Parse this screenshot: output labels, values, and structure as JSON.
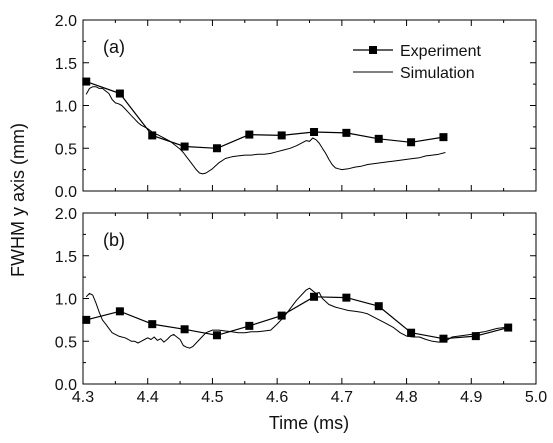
{
  "chart_data": [
    {
      "type": "line",
      "panel_label": "(a)",
      "xlim": [
        4.3,
        5.0
      ],
      "ylim": [
        0.0,
        2.0
      ],
      "y_ticks": [
        "0.0",
        "0.5",
        "1.0",
        "1.5",
        "2.0"
      ],
      "legend": {
        "position": "top-right",
        "entries": [
          "Experiment",
          "Simulation"
        ]
      },
      "series": [
        {
          "name": "Experiment",
          "style": "line-square-marker",
          "color": "#000000",
          "x": [
            4.305,
            4.357,
            4.407,
            4.457,
            4.507,
            4.557,
            4.607,
            4.657,
            4.707,
            4.757,
            4.807,
            4.857
          ],
          "y": [
            1.28,
            1.14,
            0.65,
            0.52,
            0.5,
            0.66,
            0.65,
            0.69,
            0.68,
            0.61,
            0.57,
            0.63
          ]
        },
        {
          "name": "Simulation",
          "style": "line",
          "color": "#000000",
          "x": [
            4.305,
            4.31,
            4.315,
            4.32,
            4.325,
            4.33,
            4.335,
            4.34,
            4.345,
            4.35,
            4.355,
            4.36,
            4.365,
            4.37,
            4.375,
            4.38,
            4.385,
            4.39,
            4.395,
            4.4,
            4.405,
            4.41,
            4.415,
            4.42,
            4.425,
            4.43,
            4.435,
            4.44,
            4.445,
            4.45,
            4.455,
            4.46,
            4.465,
            4.47,
            4.475,
            4.48,
            4.485,
            4.49,
            4.5,
            4.51,
            4.52,
            4.53,
            4.54,
            4.55,
            4.56,
            4.57,
            4.58,
            4.59,
            4.6,
            4.61,
            4.62,
            4.63,
            4.64,
            4.645,
            4.65,
            4.655,
            4.66,
            4.665,
            4.67,
            4.675,
            4.68,
            4.685,
            4.69,
            4.695,
            4.7,
            4.71,
            4.72,
            4.73,
            4.74,
            4.75,
            4.76,
            4.77,
            4.78,
            4.79,
            4.8,
            4.81,
            4.82,
            4.83,
            4.84,
            4.85,
            4.86
          ],
          "y": [
            1.13,
            1.2,
            1.22,
            1.22,
            1.2,
            1.2,
            1.17,
            1.14,
            1.07,
            1.03,
            1.02,
            1.0,
            0.96,
            0.92,
            0.88,
            0.84,
            0.8,
            0.77,
            0.75,
            0.73,
            0.7,
            0.67,
            0.66,
            0.64,
            0.62,
            0.6,
            0.58,
            0.55,
            0.52,
            0.49,
            0.45,
            0.4,
            0.35,
            0.3,
            0.25,
            0.21,
            0.2,
            0.21,
            0.26,
            0.33,
            0.38,
            0.4,
            0.41,
            0.42,
            0.42,
            0.43,
            0.43,
            0.44,
            0.46,
            0.48,
            0.5,
            0.53,
            0.57,
            0.59,
            0.58,
            0.62,
            0.6,
            0.56,
            0.5,
            0.44,
            0.37,
            0.31,
            0.27,
            0.26,
            0.25,
            0.26,
            0.28,
            0.29,
            0.31,
            0.32,
            0.33,
            0.34,
            0.35,
            0.36,
            0.37,
            0.38,
            0.39,
            0.41,
            0.42,
            0.43,
            0.45
          ]
        }
      ]
    },
    {
      "type": "line",
      "panel_label": "(b)",
      "xlim": [
        4.3,
        5.0
      ],
      "ylim": [
        0.0,
        2.0
      ],
      "y_ticks": [
        "0.0",
        "0.5",
        "1.0",
        "1.5",
        "2.0"
      ],
      "x_ticks": [
        "4.3",
        "4.4",
        "4.5",
        "4.6",
        "4.7",
        "4.8",
        "4.9",
        "5.0"
      ],
      "xlabel": "Time (ms)",
      "series": [
        {
          "name": "Experiment",
          "style": "line-square-marker",
          "color": "#000000",
          "x": [
            4.305,
            4.357,
            4.407,
            4.457,
            4.507,
            4.557,
            4.607,
            4.657,
            4.707,
            4.757,
            4.807,
            4.857,
            4.907,
            4.957
          ],
          "y": [
            0.75,
            0.85,
            0.7,
            0.64,
            0.57,
            0.68,
            0.8,
            1.02,
            1.01,
            0.91,
            0.6,
            0.53,
            0.56,
            0.66
          ]
        },
        {
          "name": "Simulation",
          "style": "line",
          "color": "#000000",
          "x": [
            4.305,
            4.31,
            4.315,
            4.32,
            4.325,
            4.33,
            4.335,
            4.34,
            4.345,
            4.35,
            4.355,
            4.36,
            4.365,
            4.37,
            4.375,
            4.38,
            4.385,
            4.39,
            4.395,
            4.4,
            4.405,
            4.41,
            4.415,
            4.42,
            4.425,
            4.43,
            4.435,
            4.44,
            4.445,
            4.45,
            4.455,
            4.46,
            4.465,
            4.47,
            4.475,
            4.48,
            4.485,
            4.49,
            4.5,
            4.51,
            4.52,
            4.53,
            4.54,
            4.55,
            4.56,
            4.57,
            4.58,
            4.59,
            4.6,
            4.61,
            4.62,
            4.63,
            4.64,
            4.645,
            4.65,
            4.655,
            4.66,
            4.665,
            4.67,
            4.68,
            4.69,
            4.7,
            4.71,
            4.72,
            4.73,
            4.74,
            4.75,
            4.76,
            4.77,
            4.78,
            4.79,
            4.8,
            4.81,
            4.82,
            4.83,
            4.84,
            4.85,
            4.86,
            4.87,
            4.88,
            4.89,
            4.9,
            4.91,
            4.92,
            4.93,
            4.94,
            4.95,
            4.96
          ],
          "y": [
            1.02,
            1.06,
            1.04,
            0.95,
            0.84,
            0.75,
            0.7,
            0.65,
            0.6,
            0.58,
            0.56,
            0.55,
            0.54,
            0.52,
            0.5,
            0.5,
            0.48,
            0.5,
            0.52,
            0.54,
            0.52,
            0.55,
            0.51,
            0.53,
            0.49,
            0.52,
            0.56,
            0.58,
            0.55,
            0.52,
            0.45,
            0.43,
            0.42,
            0.44,
            0.48,
            0.52,
            0.56,
            0.6,
            0.63,
            0.63,
            0.62,
            0.61,
            0.6,
            0.6,
            0.61,
            0.61,
            0.62,
            0.63,
            0.7,
            0.78,
            0.88,
            0.98,
            1.06,
            1.1,
            1.12,
            1.09,
            1.06,
            1.07,
            1.0,
            0.93,
            0.9,
            0.88,
            0.86,
            0.85,
            0.84,
            0.82,
            0.78,
            0.74,
            0.7,
            0.66,
            0.6,
            0.56,
            0.55,
            0.55,
            0.52,
            0.5,
            0.49,
            0.5,
            0.55,
            0.56,
            0.57,
            0.58,
            0.6,
            0.61,
            0.63,
            0.65,
            0.66,
            0.66
          ]
        }
      ]
    }
  ],
  "shared": {
    "ylabel": "FWHM y axis (mm)"
  }
}
